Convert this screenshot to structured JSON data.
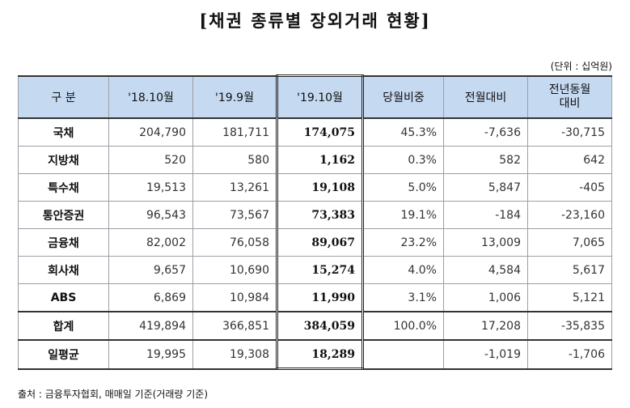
{
  "title": "[채권 종류별 장외거래 현황]",
  "unit": "(단위 : 십억원)",
  "headers": [
    "구  분",
    "'18.10월",
    "'19.9월",
    "'19.10월",
    "당월비중",
    "전월대비",
    "전년동월\n대비"
  ],
  "rows": [
    {
      "label": "국채",
      "v1": "204,790",
      "v2": "181,711",
      "v3": "174,075",
      "share": "45.3%",
      "mom": "-7,636",
      "yoy": "-30,715"
    },
    {
      "label": "지방채",
      "v1": "520",
      "v2": "580",
      "v3": "1,162",
      "share": "0.3%",
      "mom": "582",
      "yoy": "642"
    },
    {
      "label": "특수채",
      "v1": "19,513",
      "v2": "13,261",
      "v3": "19,108",
      "share": "5.0%",
      "mom": "5,847",
      "yoy": "-405"
    },
    {
      "label": "통안증권",
      "v1": "96,543",
      "v2": "73,567",
      "v3": "73,383",
      "share": "19.1%",
      "mom": "-184",
      "yoy": "-23,160"
    },
    {
      "label": "금융채",
      "v1": "82,002",
      "v2": "76,058",
      "v3": "89,067",
      "share": "23.2%",
      "mom": "13,009",
      "yoy": "7,065"
    },
    {
      "label": "회사채",
      "v1": "9,657",
      "v2": "10,690",
      "v3": "15,274",
      "share": "4.0%",
      "mom": "4,584",
      "yoy": "5,617"
    },
    {
      "label": "ABS",
      "v1": "6,869",
      "v2": "10,984",
      "v3": "11,990",
      "share": "3.1%",
      "mom": "1,006",
      "yoy": "5,121"
    }
  ],
  "total": {
    "label": "합계",
    "v1": "419,894",
    "v2": "366,851",
    "v3": "384,059",
    "share": "100.0%",
    "mom": "17,208",
    "yoy": "-35,835"
  },
  "avg": {
    "label": "일평균",
    "v1": "19,995",
    "v2": "19,308",
    "v3": "18,289",
    "share": "",
    "mom": "-1,019",
    "yoy": "-1,706"
  },
  "source": "출처 : 금융투자협회, 매매일 기준(거래량 기준)"
}
